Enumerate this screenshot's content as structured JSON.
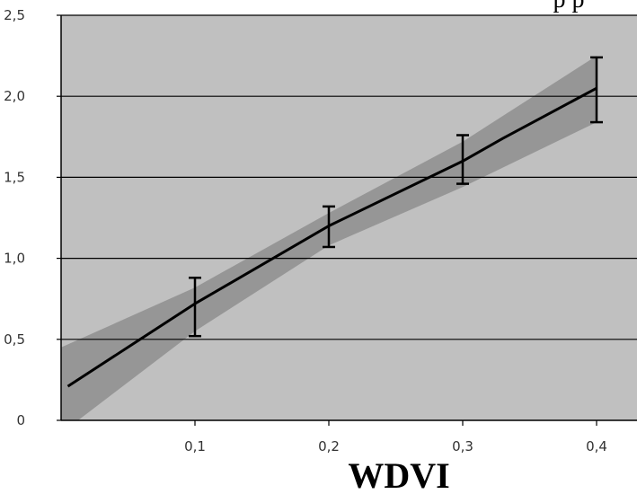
{
  "chart_data": {
    "type": "line",
    "title_fragment": "p p",
    "xlabel": "WDVI",
    "ylabel": "",
    "xlim": [
      0,
      0.42
    ],
    "ylim": [
      0,
      2.5
    ],
    "x_ticks": [
      0.1,
      0.2,
      0.3,
      0.4
    ],
    "x_tick_labels": [
      "0,1",
      "0,2",
      "0,3",
      "0,4"
    ],
    "y_ticks": [
      0,
      0.5,
      1.0,
      1.5,
      2.0,
      2.5
    ],
    "y_tick_labels": [
      "0",
      "0,5",
      "1,0",
      "1,5",
      "2,0",
      "2,5"
    ],
    "grid": "horizontal",
    "legend": "none",
    "series": [
      {
        "x": [
          0.005,
          0.1,
          0.2,
          0.3,
          0.33,
          0.4
        ],
        "y": [
          0.21,
          0.72,
          1.2,
          1.6,
          1.74,
          2.05
        ]
      }
    ],
    "error_bars": [
      {
        "x": 0.1,
        "low": 0.52,
        "high": 0.88
      },
      {
        "x": 0.2,
        "low": 1.07,
        "high": 1.32
      },
      {
        "x": 0.3,
        "low": 1.46,
        "high": 1.76
      },
      {
        "x": 0.4,
        "low": 1.84,
        "high": 2.24
      }
    ],
    "confidence_band": {
      "x": [
        0.0,
        0.1,
        0.2,
        0.3,
        0.4
      ],
      "upper": [
        0.45,
        0.82,
        1.28,
        1.72,
        2.25
      ],
      "lower": [
        -0.08,
        0.55,
        1.08,
        1.44,
        1.84
      ]
    },
    "colors": {
      "plot_bg": "#c0c0c0",
      "band": "#969696",
      "line": "#000000",
      "grid": "#000000",
      "page_bg": "#ffffff"
    }
  }
}
